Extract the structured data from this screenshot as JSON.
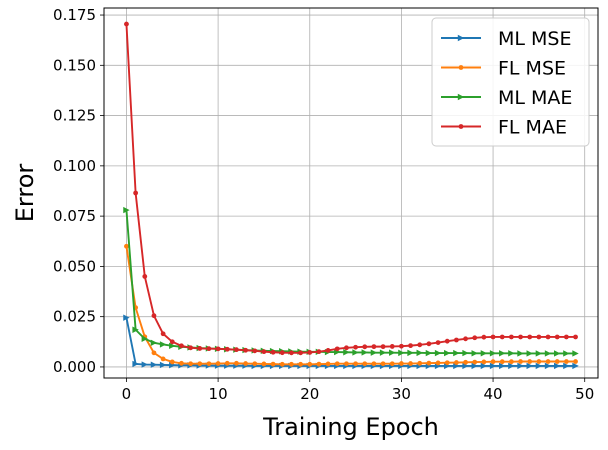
{
  "chart_data": {
    "type": "line",
    "title": "",
    "xlabel": "Training Epoch",
    "ylabel": "Error",
    "xlim": [
      -2.45,
      51.45
    ],
    "ylim": [
      -0.0055,
      0.1785
    ],
    "xticks": [
      0,
      10,
      20,
      30,
      40,
      50
    ],
    "yticks": [
      0.0,
      0.025,
      0.05,
      0.075,
      0.1,
      0.125,
      0.15,
      0.175
    ],
    "ytick_labels": [
      "0.000",
      "0.025",
      "0.050",
      "0.075",
      "0.100",
      "0.125",
      "0.150",
      "0.175"
    ],
    "grid": true,
    "legend": "top-right",
    "x": [
      0,
      1,
      2,
      3,
      4,
      5,
      6,
      7,
      8,
      9,
      10,
      11,
      12,
      13,
      14,
      15,
      16,
      17,
      18,
      19,
      20,
      21,
      22,
      23,
      24,
      25,
      26,
      27,
      28,
      29,
      30,
      31,
      32,
      33,
      34,
      35,
      36,
      37,
      38,
      39,
      40,
      41,
      42,
      43,
      44,
      45,
      46,
      47,
      48,
      49
    ],
    "series": [
      {
        "name": "ML MSE",
        "color": "#1f77b4",
        "marker": "tri-right",
        "values": [
          0.0245,
          0.0015,
          0.0012,
          0.0011,
          0.001,
          0.0009,
          0.0008,
          0.0008,
          0.0007,
          0.0007,
          0.0006,
          0.0006,
          0.0006,
          0.0006,
          0.0005,
          0.0005,
          0.0005,
          0.0005,
          0.0005,
          0.0005,
          0.0005,
          0.0005,
          0.0005,
          0.0005,
          0.0005,
          0.0005,
          0.0005,
          0.0005,
          0.0005,
          0.0005,
          0.0005,
          0.0005,
          0.0005,
          0.0005,
          0.0005,
          0.0005,
          0.0005,
          0.0005,
          0.0005,
          0.0005,
          0.0005,
          0.0005,
          0.0005,
          0.0005,
          0.0005,
          0.0005,
          0.0005,
          0.0005,
          0.0005,
          0.0005
        ]
      },
      {
        "name": "FL MSE",
        "color": "#ff7f0e",
        "marker": "circle",
        "values": [
          0.06,
          0.0295,
          0.015,
          0.007,
          0.004,
          0.0025,
          0.0018,
          0.0016,
          0.0016,
          0.0016,
          0.0017,
          0.0018,
          0.0018,
          0.0017,
          0.0016,
          0.0015,
          0.0014,
          0.0013,
          0.0013,
          0.0013,
          0.0013,
          0.0014,
          0.0015,
          0.0016,
          0.0016,
          0.0016,
          0.0016,
          0.0016,
          0.0016,
          0.0016,
          0.0017,
          0.0017,
          0.0018,
          0.0019,
          0.002,
          0.0021,
          0.0022,
          0.0023,
          0.0024,
          0.0025,
          0.0026,
          0.0026,
          0.0026,
          0.0027,
          0.0027,
          0.0027,
          0.0027,
          0.0027,
          0.0027,
          0.0027
        ]
      },
      {
        "name": "ML MAE",
        "color": "#2ca02c",
        "marker": "tri-right",
        "values": [
          0.078,
          0.0185,
          0.014,
          0.012,
          0.0112,
          0.0105,
          0.01,
          0.0097,
          0.0094,
          0.0092,
          0.009,
          0.0088,
          0.0086,
          0.0084,
          0.0082,
          0.008,
          0.0079,
          0.0078,
          0.0077,
          0.0076,
          0.0075,
          0.0075,
          0.0074,
          0.0074,
          0.0073,
          0.0072,
          0.0072,
          0.0071,
          0.0071,
          0.0071,
          0.007,
          0.007,
          0.007,
          0.0069,
          0.0069,
          0.0069,
          0.0069,
          0.0069,
          0.0068,
          0.0068,
          0.0068,
          0.0068,
          0.0068,
          0.0067,
          0.0067,
          0.0067,
          0.0067,
          0.0067,
          0.0067,
          0.0067
        ]
      },
      {
        "name": "FL MAE",
        "color": "#d62728",
        "marker": "circle",
        "values": [
          0.1705,
          0.0865,
          0.045,
          0.0255,
          0.0165,
          0.0125,
          0.0105,
          0.0095,
          0.0092,
          0.0091,
          0.009,
          0.0088,
          0.0086,
          0.0083,
          0.008,
          0.0076,
          0.0073,
          0.0071,
          0.007,
          0.007,
          0.0072,
          0.0076,
          0.0082,
          0.009,
          0.0095,
          0.0098,
          0.01,
          0.0101,
          0.0101,
          0.0102,
          0.0103,
          0.0106,
          0.011,
          0.0115,
          0.0121,
          0.0128,
          0.0134,
          0.014,
          0.0145,
          0.0148,
          0.0149,
          0.0149,
          0.0149,
          0.0149,
          0.0149,
          0.0149,
          0.0149,
          0.0149,
          0.0149,
          0.0149
        ]
      }
    ]
  }
}
